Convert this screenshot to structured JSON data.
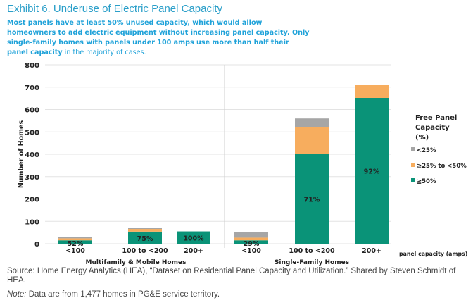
{
  "title": "Exhibit 6. Underuse of Electric Panel Capacity",
  "subtitle_bold": "Most panels have at least 50% unused capacity, which would allow homeowners to add electric equipment without increasing panel capacity. Only single-family homes with panels under 100 amps use more than half their panel capacity",
  "subtitle_light": " in the majority of cases.",
  "source": "Source: Home Energy Analytics (HEA), “Dataset on Residential Panel Capacity and Utilization.” Shared by Steven Schmidt of HEA.",
  "note_label": "Note:",
  "note_text": " Data are from 1,477 homes in PG&E service territory.",
  "chart_data": {
    "type": "bar",
    "stacked": true,
    "ylabel": "Number of Homes",
    "xlabel": "panel capacity (amps)",
    "ylim": [
      0,
      800
    ],
    "yticks": [
      0,
      100,
      200,
      300,
      400,
      500,
      600,
      700,
      800
    ],
    "grid": true,
    "legend_title": "Free Panel Capacity (%)",
    "legend_title_lines": [
      "Free Panel",
      "Capacity",
      "(%)"
    ],
    "legend_position": "right",
    "groups": [
      {
        "name": "Multifamily & Mobile Homes",
        "categories": [
          "<100",
          "100 to <200",
          "200+"
        ]
      },
      {
        "name": "Single-Family Homes",
        "categories": [
          "<100",
          "100 to <200",
          "200+"
        ]
      }
    ],
    "categories": [
      "<100",
      "100 to <200",
      "200+",
      "<100",
      "100 to <200",
      "200+"
    ],
    "category_groups": [
      "MF",
      "MF",
      "MF",
      "SF",
      "SF",
      "SF"
    ],
    "series": [
      {
        "name": "≧50%",
        "color": "#0a9378",
        "values": [
          15,
          54,
          55,
          15,
          400,
          652
        ]
      },
      {
        "name": "≧25% to <50%",
        "color": "#f7ad5e",
        "values": [
          9,
          12,
          0,
          12,
          120,
          58
        ]
      },
      {
        "name": "<25%",
        "color": "#a6a6a6",
        "values": [
          5,
          6,
          0,
          25,
          40,
          0
        ]
      }
    ],
    "data_labels": [
      "52%",
      "75%",
      "100%",
      "29%",
      "71%",
      "92%"
    ],
    "legend_order": [
      "<25%",
      "≧25% to <50%",
      "≧50%"
    ]
  }
}
